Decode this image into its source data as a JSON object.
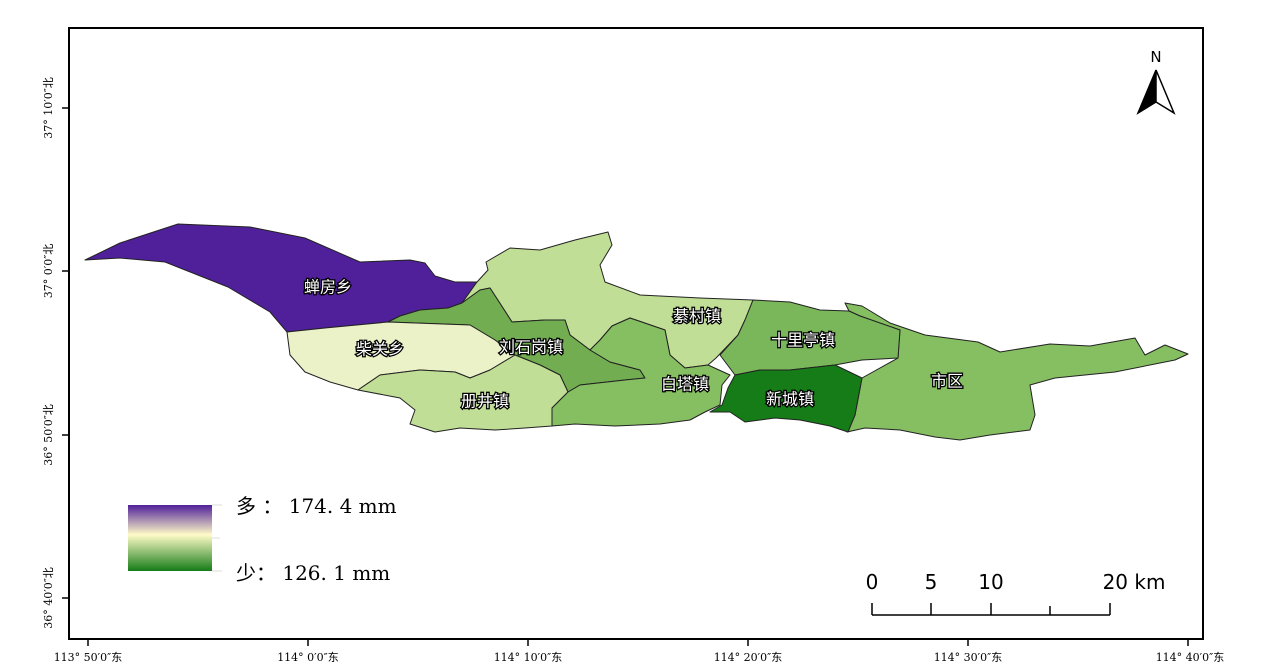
{
  "map": {
    "regions": [
      {
        "id": "chanfang",
        "name": "蝉房乡",
        "color": "#50209a"
      },
      {
        "id": "chaiguan",
        "name": "柴关乡",
        "color": "#ecf2c8"
      },
      {
        "id": "liushigang",
        "name": "刘石岗镇",
        "color": "#72ad52"
      },
      {
        "id": "cejing",
        "name": "册井镇",
        "color": "#c0de95"
      },
      {
        "id": "qincun",
        "name": "綦村镇",
        "color": "#c0de95"
      },
      {
        "id": "baita",
        "name": "白塔镇",
        "color": "#86be62"
      },
      {
        "id": "shiliting",
        "name": "十里亭镇",
        "color": "#7ab65a"
      },
      {
        "id": "xincheng",
        "name": "新城镇",
        "color": "#157c18"
      },
      {
        "id": "shiqu",
        "name": "市区",
        "color": "#86be62"
      }
    ],
    "x_ticks": [
      "113° 50′0″东",
      "114° 0′0″东",
      "114° 10′0″东",
      "114° 20′0″东",
      "114° 30′0″东",
      "114° 40′0″东"
    ],
    "y_ticks": [
      "37° 10′0″北",
      "37° 0′0″北",
      "36° 50′0″北",
      "36° 40′0″北"
    ],
    "north_label": "N"
  },
  "legend": {
    "max_label": "多 ： 174. 4 mm",
    "min_label": "少： 126. 1 mm",
    "gradient_top": "#50209a",
    "gradient_mid": "#fffbc8",
    "gradient_bottom": "#157c18"
  },
  "scale_bar": {
    "labels": [
      "0",
      "5",
      "10",
      "20 km"
    ]
  }
}
